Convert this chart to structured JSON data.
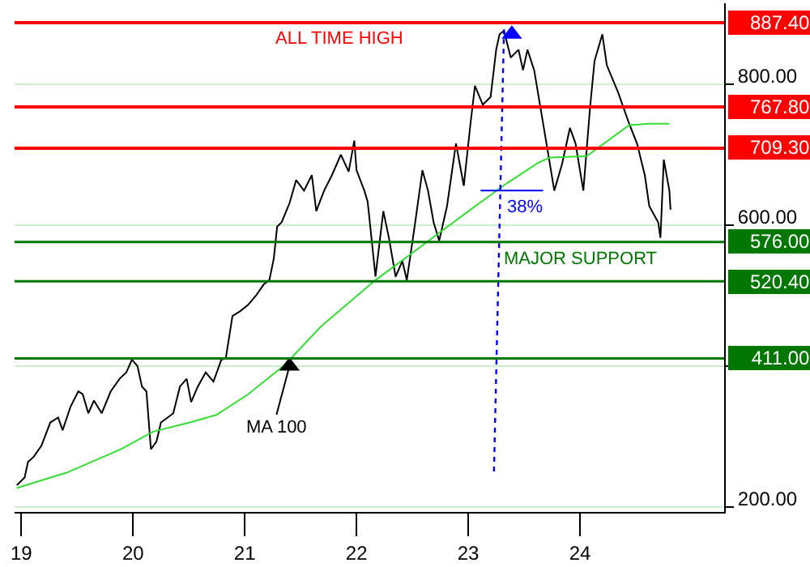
{
  "chart_data": {
    "type": "line",
    "series": [
      {
        "color": "#000000",
        "x": [
          2018.96,
          2019.03,
          2019.06,
          2019.11,
          2019.18,
          2019.26,
          2019.33,
          2019.37,
          2019.44,
          2019.51,
          2019.55,
          2019.6,
          2019.65,
          2019.72,
          2019.8,
          2019.88,
          2019.94,
          2019.99,
          2020.04,
          2020.08,
          2020.12,
          2020.16,
          2020.21,
          2020.25,
          2020.31,
          2020.36,
          2020.42,
          2020.48,
          2020.52,
          2020.58,
          2020.65,
          2020.72,
          2020.79,
          2020.83,
          2020.89,
          2020.96,
          2021.03,
          2021.1,
          2021.17,
          2021.22,
          2021.26,
          2021.29,
          2021.33,
          2021.4,
          2021.46,
          2021.53,
          2021.6,
          2021.64,
          2021.71,
          2021.78,
          2021.86,
          2021.93,
          2021.98,
          2022.0,
          2022.07,
          2022.1,
          2022.17,
          2022.24,
          2022.29,
          2022.35,
          2022.41,
          2022.45,
          2022.52,
          2022.59,
          2022.64,
          2022.69,
          2022.74,
          2022.81,
          2022.89,
          2022.96,
          2023.02,
          2023.06,
          2023.13,
          2023.2,
          2023.25,
          2023.28,
          2023.32,
          2023.38,
          2023.45,
          2023.49,
          2023.53,
          2023.59,
          2023.63,
          2023.7,
          2023.77,
          2023.84,
          2023.91,
          2023.96,
          2024.03,
          2024.09,
          2024.13,
          2024.2,
          2024.24,
          2024.34,
          2024.44,
          2024.51,
          2024.58,
          2024.62,
          2024.7,
          2024.72,
          2024.75,
          2024.8,
          2024.81
        ],
        "values": [
          231,
          242,
          264,
          271,
          287,
          320,
          327,
          309,
          342,
          364,
          360,
          333,
          351,
          333,
          364,
          382,
          391,
          409,
          400,
          371,
          364,
          282,
          293,
          320,
          327,
          333,
          371,
          382,
          349,
          371,
          391,
          378,
          409,
          411,
          471,
          478,
          487,
          500,
          516,
          522,
          553,
          598,
          604,
          631,
          664,
          649,
          671,
          620,
          649,
          671,
          700,
          676,
          720,
          678,
          649,
          633,
          527,
          620,
          582,
          527,
          549,
          522,
          598,
          678,
          649,
          604,
          578,
          627,
          716,
          656,
          744,
          798,
          771,
          782,
          849,
          871,
          876,
          838,
          849,
          820,
          849,
          820,
          782,
          716,
          649,
          687,
          738,
          716,
          649,
          767,
          833,
          871,
          827,
          789,
          744,
          716,
          671,
          627,
          604,
          582,
          693,
          649,
          622
        ]
      },
      {
        "color": "#33dd33",
        "x": [
          2018.96,
          2019.41,
          2019.89,
          2020.18,
          2020.51,
          2020.75,
          2021.03,
          2021.36,
          2021.68,
          2022.17,
          2022.74,
          2023.02,
          2023.35,
          2023.63,
          2023.73,
          2024.06,
          2024.44,
          2024.62,
          2024.8
        ],
        "values": [
          227,
          249,
          282,
          307,
          320,
          331,
          360,
          402,
          456,
          522,
          589,
          622,
          660,
          689,
          696,
          698,
          742,
          744,
          744
        ]
      },
      {
        "color": "#0000ff",
        "line_style": "dotted",
        "x": [
          2023.32,
          2023.23
        ],
        "values": [
          878,
          249
        ]
      },
      {
        "color": "#0000ff",
        "x": [
          2023.11,
          2023.67
        ],
        "values": [
          649,
          649
        ]
      },
      {
        "type": "scatter",
        "marker": "triangle",
        "colors": [
          "#0000ff",
          "#000000"
        ],
        "x": [
          2023.39,
          2021.4
        ],
        "values": [
          871,
          400
        ]
      }
    ],
    "xlim": [
      2018.94,
      2025.29
    ],
    "xticks": [
      {
        "value": 2019,
        "label": "19"
      },
      {
        "value": 2020,
        "label": "20"
      },
      {
        "value": 2021,
        "label": "21"
      },
      {
        "value": 2022,
        "label": "22"
      },
      {
        "value": 2023,
        "label": "23"
      },
      {
        "value": 2024,
        "label": "24"
      }
    ],
    "ylim": [
      193,
      915
    ],
    "yticks": [
      {
        "value": 200,
        "label": "200.00"
      },
      {
        "value": 400,
        "label": null
      },
      {
        "value": 600,
        "label": "600.00"
      },
      {
        "value": 800,
        "label": "800.00"
      }
    ],
    "grid": "y",
    "ref_lines": [
      {
        "axis": "y",
        "value": 887.4,
        "label": "887.40",
        "color": "#ff0000"
      },
      {
        "axis": "y",
        "value": 767.8,
        "label": "767.80",
        "color": "#ff0000"
      },
      {
        "axis": "y",
        "value": 709.3,
        "label": "709.30",
        "color": "#ff0000"
      },
      {
        "axis": "y",
        "value": 576,
        "label": "576.00",
        "color": "#007700"
      },
      {
        "axis": "y",
        "value": 520.4,
        "label": "520.40",
        "color": "#007700"
      },
      {
        "axis": "y",
        "value": 411,
        "label": "411.00",
        "color": "#007700"
      }
    ],
    "annotations": [
      {
        "text": "ALL TIME HIGH",
        "x": 2021.85,
        "y": 887.4
      },
      {
        "text": "MAJOR SUPPORT",
        "x": 2024.0,
        "y": 520.4
      },
      {
        "text": "38%",
        "x": 2023.5,
        "y": 649
      },
      {
        "text": "MA 100",
        "x": 2021.4,
        "y": 400
      }
    ]
  }
}
